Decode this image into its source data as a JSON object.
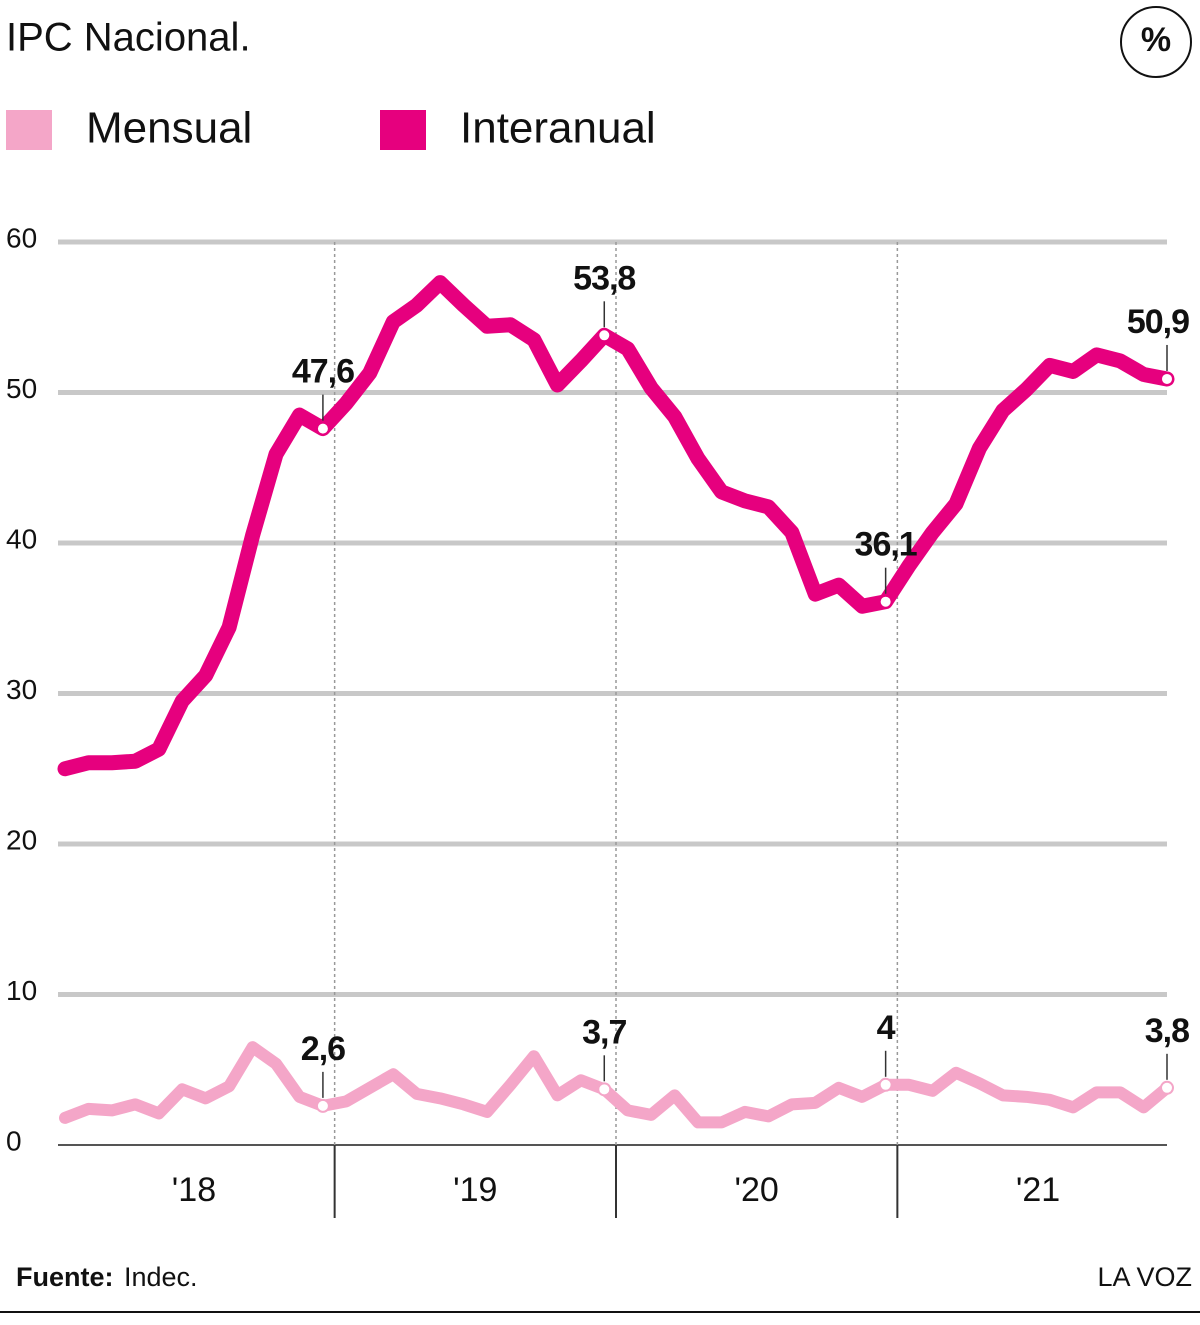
{
  "chart_data": {
    "type": "line",
    "title": "IPC Nacional.",
    "unit_badge": "%",
    "categories": [
      null,
      null,
      null,
      null,
      null,
      null,
      "'18",
      null,
      null,
      null,
      null,
      null,
      null,
      null,
      null,
      null,
      null,
      null,
      "'19",
      null,
      null,
      null,
      null,
      null,
      null,
      null,
      null,
      null,
      null,
      null,
      "'20",
      null,
      null,
      null,
      null,
      null,
      null,
      null,
      null,
      null,
      null,
      null,
      "'21",
      null,
      null,
      null,
      null,
      null
    ],
    "ylim": [
      0,
      60
    ],
    "yticks": [
      0,
      10,
      20,
      30,
      40,
      50,
      60
    ],
    "grid": true,
    "legend": "top-left",
    "series": [
      {
        "name": "Mensual",
        "color": "#f4a6c8",
        "values": [
          1.8,
          2.4,
          2.3,
          2.7,
          2.1,
          3.7,
          3.1,
          3.9,
          6.5,
          5.4,
          3.2,
          2.6,
          2.9,
          3.8,
          4.7,
          3.4,
          3.1,
          2.7,
          2.2,
          4.0,
          5.9,
          3.3,
          4.3,
          3.7,
          2.3,
          2.0,
          3.3,
          1.5,
          1.5,
          2.2,
          1.9,
          2.7,
          2.8,
          3.8,
          3.2,
          4.0,
          4.0,
          3.6,
          4.8,
          4.1,
          3.3,
          3.2,
          3.0,
          2.5,
          3.5,
          3.5,
          2.5,
          3.8
        ],
        "value_labels": [
          null,
          null,
          null,
          null,
          null,
          null,
          null,
          null,
          null,
          null,
          null,
          "2,6",
          null,
          null,
          null,
          null,
          null,
          null,
          null,
          null,
          null,
          null,
          null,
          "3,7",
          null,
          null,
          null,
          null,
          null,
          null,
          null,
          null,
          null,
          null,
          null,
          "4",
          null,
          null,
          null,
          null,
          null,
          null,
          null,
          null,
          null,
          null,
          null,
          "3,8"
        ]
      },
      {
        "name": "Interanual",
        "color": "#e6007e",
        "values": [
          25.0,
          25.4,
          25.4,
          25.5,
          26.3,
          29.5,
          31.2,
          34.4,
          40.5,
          45.9,
          48.5,
          47.6,
          49.3,
          51.3,
          54.7,
          55.8,
          57.3,
          55.8,
          54.4,
          54.5,
          53.5,
          50.5,
          52.1,
          53.8,
          52.9,
          50.3,
          48.4,
          45.6,
          43.4,
          42.8,
          42.4,
          40.7,
          36.6,
          37.2,
          35.8,
          36.1,
          38.5,
          40.7,
          42.6,
          46.3,
          48.8,
          50.2,
          51.8,
          51.4,
          52.5,
          52.1,
          51.2,
          50.9
        ],
        "value_labels": [
          null,
          null,
          null,
          null,
          null,
          null,
          null,
          null,
          null,
          null,
          null,
          "47,6",
          null,
          null,
          null,
          null,
          null,
          null,
          null,
          null,
          null,
          null,
          null,
          "53,8",
          null,
          null,
          null,
          null,
          null,
          null,
          null,
          null,
          null,
          null,
          null,
          "36,1",
          null,
          null,
          null,
          null,
          null,
          null,
          null,
          null,
          null,
          null,
          null,
          "50,9"
        ]
      }
    ],
    "source_label": "Fuente:",
    "source": "Indec.",
    "credit": "LA VOZ"
  }
}
